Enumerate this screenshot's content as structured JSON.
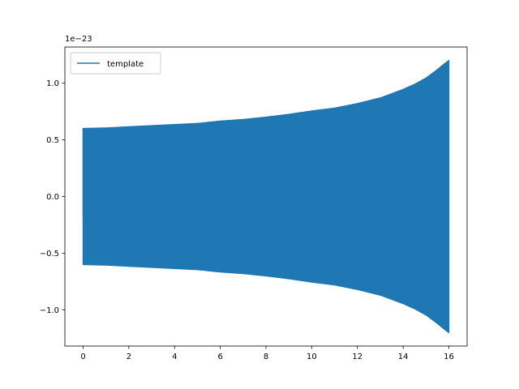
{
  "chart_data": {
    "type": "line",
    "xlim": [
      -0.8,
      16.8
    ],
    "ylim": [
      -1.32,
      1.32
    ],
    "y_scale_label": "1e−23",
    "x_ticks": [
      0,
      2,
      4,
      6,
      8,
      10,
      12,
      14,
      16
    ],
    "x_tick_labels": [
      "0",
      "2",
      "4",
      "6",
      "8",
      "10",
      "12",
      "14",
      "16"
    ],
    "y_ticks": [
      -1.0,
      -0.5,
      0.0,
      0.5,
      1.0
    ],
    "y_tick_labels": [
      "−1.0",
      "−0.5",
      "0.0",
      "0.5",
      "1.0"
    ],
    "grid": false,
    "legend": {
      "position": "top-left",
      "entries": [
        "template"
      ]
    },
    "series": [
      {
        "name": "template",
        "color": "#1f77b4",
        "x_start": 0,
        "x_end": 16,
        "start_value": -0.17,
        "envelope": {
          "x": [
            0,
            1,
            2,
            3,
            4,
            5,
            6,
            7,
            8,
            9,
            10,
            11,
            12,
            13,
            14,
            14.5,
            15,
            15.5,
            15.8,
            16
          ],
          "amplitude": [
            0.6,
            0.605,
            0.615,
            0.625,
            0.635,
            0.645,
            0.665,
            0.68,
            0.7,
            0.725,
            0.755,
            0.78,
            0.82,
            0.87,
            0.945,
            0.99,
            1.045,
            1.12,
            1.17,
            1.2
          ]
        }
      }
    ]
  }
}
